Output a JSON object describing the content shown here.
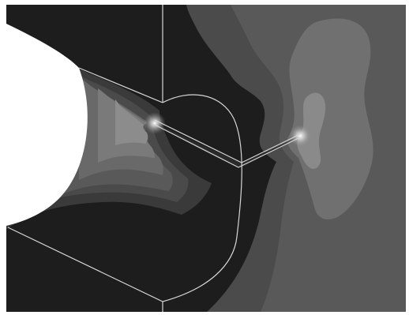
{
  "figure": {
    "kind": "grayscale contour plot",
    "colors": {
      "background": "#ffffff",
      "darkest": "#1d1d1d",
      "band_1": "#2f2f2f",
      "band_2": "#3d3d3d",
      "band_3": "#4b4b4b",
      "band_4": "#595959",
      "band_5": "#676767",
      "band_6": "#777777",
      "band_7": "#878787",
      "band_8": "#999999",
      "edges": "#d6d6d6",
      "hole": "#ffffff"
    }
  }
}
